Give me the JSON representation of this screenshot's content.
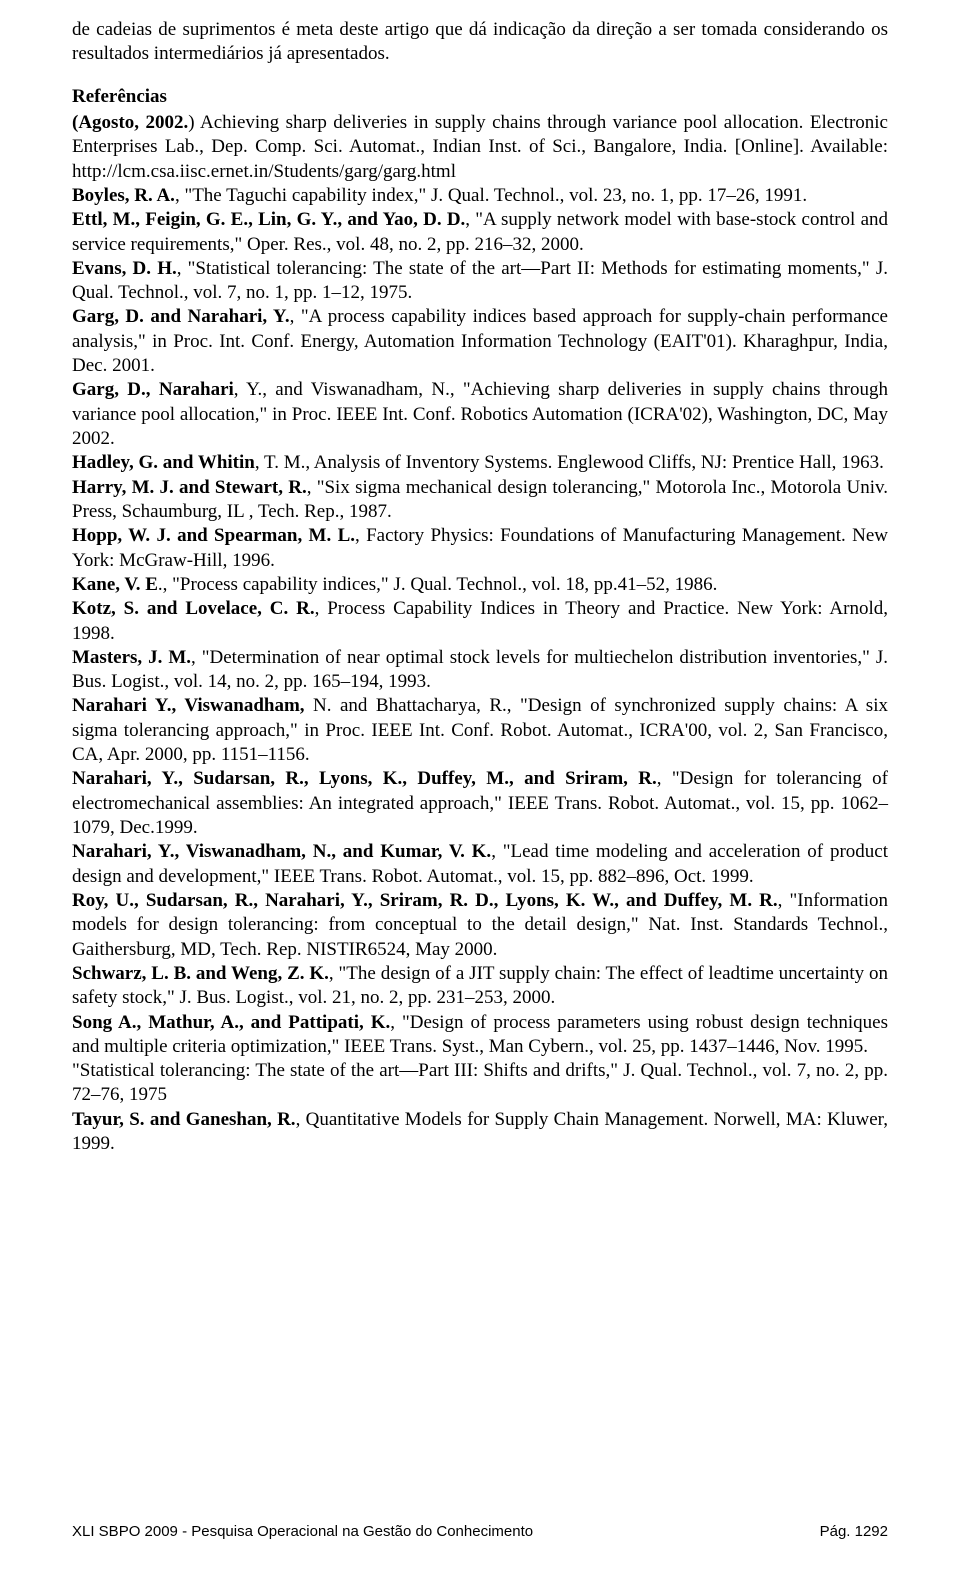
{
  "page": {
    "background_color": "#ffffff",
    "text_color": "#000000",
    "body_font": "Times New Roman",
    "body_font_size_pt": 12,
    "footer_font": "Arial",
    "footer_font_size_pt": 10
  },
  "intro": "de cadeias de suprimentos é meta deste artigo que dá indicação da direção a ser tomada considerando os resultados intermediários já apresentados.",
  "section_heading": "Referências",
  "refs": [
    {
      "b": "(Agosto, 2002.",
      "r": ") Achieving sharp deliveries in supply chains through variance pool allocation. Electronic Enterprises Lab., Dep. Comp. Sci. Automat., Indian Inst. of Sci., Bangalore, India. [Online]. Available: http://lcm.csa.iisc.ernet.in/Students/garg/garg.html"
    },
    {
      "b": "Boyles, R. A.",
      "r": ", \"The Taguchi capability index,\" J. Qual. Technol., vol. 23, no. 1, pp. 17–26, 1991."
    },
    {
      "b": "Ettl, M., Feigin, G. E., Lin, G. Y., and Yao, D. D.",
      "r": ", \"A supply network model with base-stock control and service requirements,\" Oper. Res., vol. 48, no. 2, pp. 216–32, 2000."
    },
    {
      "b": "Evans, D. H.",
      "r": ", \"Statistical tolerancing: The state of the art—Part II: Methods for estimating moments,\" J. Qual. Technol., vol. 7, no. 1, pp. 1–12, 1975."
    },
    {
      "b": "Garg, D. and Narahari, Y.",
      "r": ", \"A process capability indices based approach for supply-chain performance analysis,\" in Proc. Int. Conf. Energy, Automation Information Technology (EAIT'01). Kharaghpur, India, Dec. 2001."
    },
    {
      "b": "Garg, D., Narahari",
      "r": ", Y., and Viswanadham, N., \"Achieving sharp deliveries in supply chains through variance pool allocation,\" in Proc. IEEE Int. Conf. Robotics Automation (ICRA'02), Washington, DC, May 2002."
    },
    {
      "b": "Hadley, G. and Whitin",
      "r": ", T. M., Analysis of Inventory Systems. Englewood Cliffs, NJ: Prentice Hall, 1963."
    },
    {
      "b": "Harry, M. J. and Stewart, R.",
      "r": ", \"Six sigma mechanical design tolerancing,\" Motorola Inc., Motorola Univ. Press, Schaumburg, IL , Tech. Rep., 1987."
    },
    {
      "b": "Hopp, W. J. and Spearman, M. L.",
      "r": ", Factory Physics: Foundations of Manufacturing Management. New York: McGraw-Hill, 1996."
    },
    {
      "b": "Kane, V. E",
      "r": "., \"Process capability indices,\" J. Qual. Technol., vol. 18, pp.41–52, 1986."
    },
    {
      "b": "Kotz, S. and Lovelace, C. R.",
      "r": ", Process Capability Indices in Theory and Practice. New York: Arnold, 1998."
    },
    {
      "b": "Masters, J. M.",
      "r": ", \"Determination of near optimal stock levels for multiechelon distribution inventories,\" J. Bus. Logist., vol. 14, no. 2, pp. 165–194, 1993."
    },
    {
      "b": "Narahari Y., Viswanadham,",
      "r": "  N. and Bhattacharya, R., \"Design of synchronized supply chains: A six sigma tolerancing approach,\" in Proc. IEEE Int. Conf. Robot. Automat., ICRA'00, vol. 2, San Francisco, CA, Apr. 2000, pp. 1151–1156."
    },
    {
      "b": "Narahari, Y., Sudarsan, R., Lyons, K., Duffey, M., and Sriram, R.",
      "r": ", \"Design for tolerancing of electromechanical assemblies: An integrated approach,\" IEEE Trans. Robot. Automat., vol. 15, pp. 1062–1079, Dec.1999."
    },
    {
      "b": "Narahari, Y., Viswanadham, N., and Kumar, V. K.",
      "r": ", \"Lead time modeling and acceleration of product design and development,\" IEEE Trans. Robot. Automat., vol. 15, pp. 882–896, Oct. 1999."
    },
    {
      "b": "Roy, U., Sudarsan, R., Narahari, Y., Sriram, R. D., Lyons, K. W., and Duffey, M. R.",
      "r": ", \"Information models for design tolerancing: from conceptual to the detail design,\" Nat. Inst. Standards Technol., Gaithersburg, MD, Tech. Rep. NISTIR6524, May 2000."
    },
    {
      "b": "Schwarz, L. B. and Weng, Z. K.",
      "r": ", \"The design of a JIT supply chain: The effect of leadtime uncertainty on safety stock,\" J. Bus. Logist., vol. 21, no. 2, pp. 231–253, 2000."
    },
    {
      "b": "Song A., Mathur, A., and Pattipati, K.",
      "r": ", \"Design of process parameters using robust design techniques and multiple criteria optimization,\" IEEE Trans. Syst., Man Cybern., vol. 25, pp. 1437–1446, Nov. 1995."
    },
    {
      "b": "",
      "r": "\"Statistical tolerancing: The state of the art—Part III: Shifts and drifts,\" J. Qual. Technol., vol. 7, no. 2, pp. 72–76, 1975"
    },
    {
      "b": "Tayur, S. and Ganeshan, R.",
      "r": ", Quantitative Models for Supply Chain Management. Norwell, MA: Kluwer, 1999."
    }
  ],
  "footer": {
    "left": "XLI SBPO 2009 - Pesquisa Operacional na Gestão do Conhecimento",
    "right": "Pág. 1292"
  }
}
